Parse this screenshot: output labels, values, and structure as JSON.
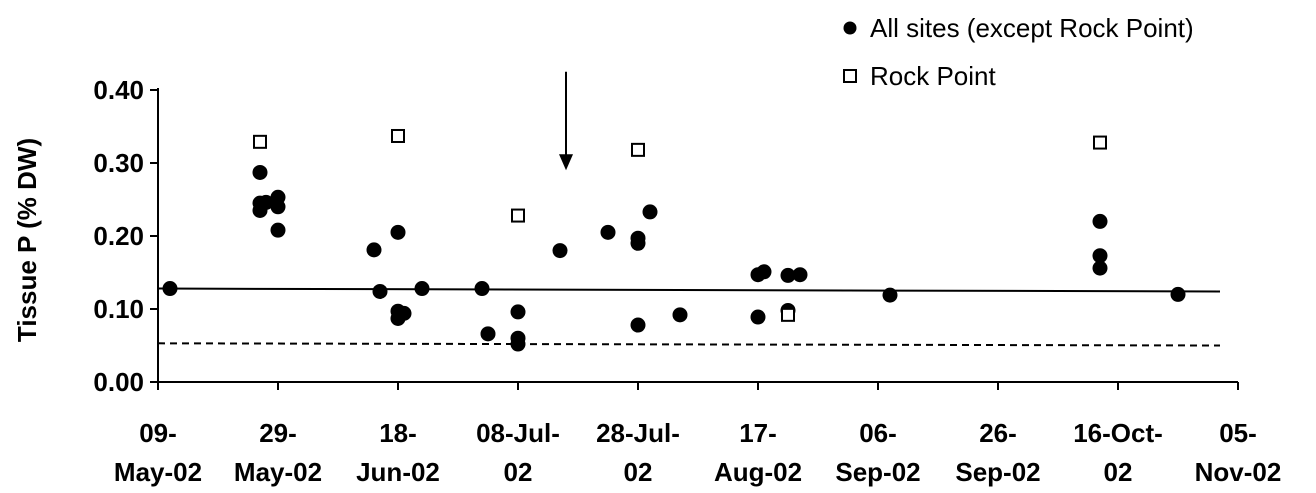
{
  "chart_data": {
    "type": "scatter",
    "title": "",
    "xlabel": "",
    "ylabel": "Tissue P (% DW)",
    "ylim": [
      0,
      0.4
    ],
    "y_ticks": [
      "0.00",
      "0.10",
      "0.20",
      "0.30",
      "0.40"
    ],
    "xlim": [
      "2002-05-09",
      "2002-11-05"
    ],
    "x_ticks": [
      {
        "date": "2002-05-09",
        "line1": "09-",
        "line2": "May-02"
      },
      {
        "date": "2002-05-29",
        "line1": "29-",
        "line2": "May-02"
      },
      {
        "date": "2002-06-18",
        "line1": "18-",
        "line2": "Jun-02"
      },
      {
        "date": "2002-07-08",
        "line1": "08-Jul-",
        "line2": "02"
      },
      {
        "date": "2002-07-28",
        "line1": "28-Jul-",
        "line2": "02"
      },
      {
        "date": "2002-08-17",
        "line1": "17-",
        "line2": "Aug-02"
      },
      {
        "date": "2002-09-06",
        "line1": "06-",
        "line2": "Sep-02"
      },
      {
        "date": "2002-09-26",
        "line1": "26-",
        "line2": "Sep-02"
      },
      {
        "date": "2002-10-16",
        "line1": "16-Oct-",
        "line2": "02"
      },
      {
        "date": "2002-11-05",
        "line1": "05-",
        "line2": "Nov-02"
      }
    ],
    "grid": false,
    "legend_position": "top-right",
    "series": [
      {
        "name": "All sites (except Rock Point)",
        "marker": "filled-circle",
        "color": "#000000",
        "points": [
          {
            "x": "2002-05-11",
            "y": 0.128
          },
          {
            "x": "2002-05-26",
            "y": 0.287
          },
          {
            "x": "2002-05-26",
            "y": 0.245
          },
          {
            "x": "2002-05-26",
            "y": 0.235
          },
          {
            "x": "2002-05-27",
            "y": 0.246
          },
          {
            "x": "2002-05-29",
            "y": 0.253
          },
          {
            "x": "2002-05-29",
            "y": 0.24
          },
          {
            "x": "2002-05-29",
            "y": 0.208
          },
          {
            "x": "2002-06-14",
            "y": 0.181
          },
          {
            "x": "2002-06-15",
            "y": 0.124
          },
          {
            "x": "2002-06-18",
            "y": 0.205
          },
          {
            "x": "2002-06-18",
            "y": 0.097
          },
          {
            "x": "2002-06-18",
            "y": 0.087
          },
          {
            "x": "2002-06-19",
            "y": 0.094
          },
          {
            "x": "2002-06-22",
            "y": 0.128
          },
          {
            "x": "2002-07-02",
            "y": 0.128
          },
          {
            "x": "2002-07-03",
            "y": 0.066
          },
          {
            "x": "2002-07-08",
            "y": 0.096
          },
          {
            "x": "2002-07-08",
            "y": 0.06
          },
          {
            "x": "2002-07-08",
            "y": 0.052
          },
          {
            "x": "2002-07-15",
            "y": 0.18
          },
          {
            "x": "2002-07-23",
            "y": 0.205
          },
          {
            "x": "2002-07-28",
            "y": 0.197
          },
          {
            "x": "2002-07-28",
            "y": 0.19
          },
          {
            "x": "2002-07-28",
            "y": 0.078
          },
          {
            "x": "2002-07-30",
            "y": 0.233
          },
          {
            "x": "2002-08-04",
            "y": 0.092
          },
          {
            "x": "2002-08-17",
            "y": 0.147
          },
          {
            "x": "2002-08-17",
            "y": 0.089
          },
          {
            "x": "2002-08-18",
            "y": 0.151
          },
          {
            "x": "2002-08-22",
            "y": 0.146
          },
          {
            "x": "2002-08-22",
            "y": 0.098
          },
          {
            "x": "2002-08-24",
            "y": 0.147
          },
          {
            "x": "2002-09-08",
            "y": 0.119
          },
          {
            "x": "2002-10-13",
            "y": 0.22
          },
          {
            "x": "2002-10-13",
            "y": 0.173
          },
          {
            "x": "2002-10-13",
            "y": 0.156
          },
          {
            "x": "2002-10-26",
            "y": 0.12
          }
        ]
      },
      {
        "name": "Rock Point",
        "marker": "open-square",
        "color": "#000000",
        "points": [
          {
            "x": "2002-05-26",
            "y": 0.329
          },
          {
            "x": "2002-06-18",
            "y": 0.337
          },
          {
            "x": "2002-07-08",
            "y": 0.228
          },
          {
            "x": "2002-07-28",
            "y": 0.318
          },
          {
            "x": "2002-08-22",
            "y": 0.092
          },
          {
            "x": "2002-10-13",
            "y": 0.328
          }
        ]
      }
    ],
    "reference_lines": [
      {
        "style": "solid",
        "y_start": 0.128,
        "y_end": 0.124,
        "x_start": "2002-05-09",
        "x_end": "2002-11-02"
      },
      {
        "style": "dashed",
        "y_start": 0.053,
        "y_end": 0.05,
        "x_start": "2002-05-09",
        "x_end": "2002-11-02"
      }
    ],
    "annotations": [
      {
        "type": "down-arrow",
        "x": "2002-07-16",
        "y_top": 0.425,
        "y_tip": 0.29
      }
    ]
  }
}
